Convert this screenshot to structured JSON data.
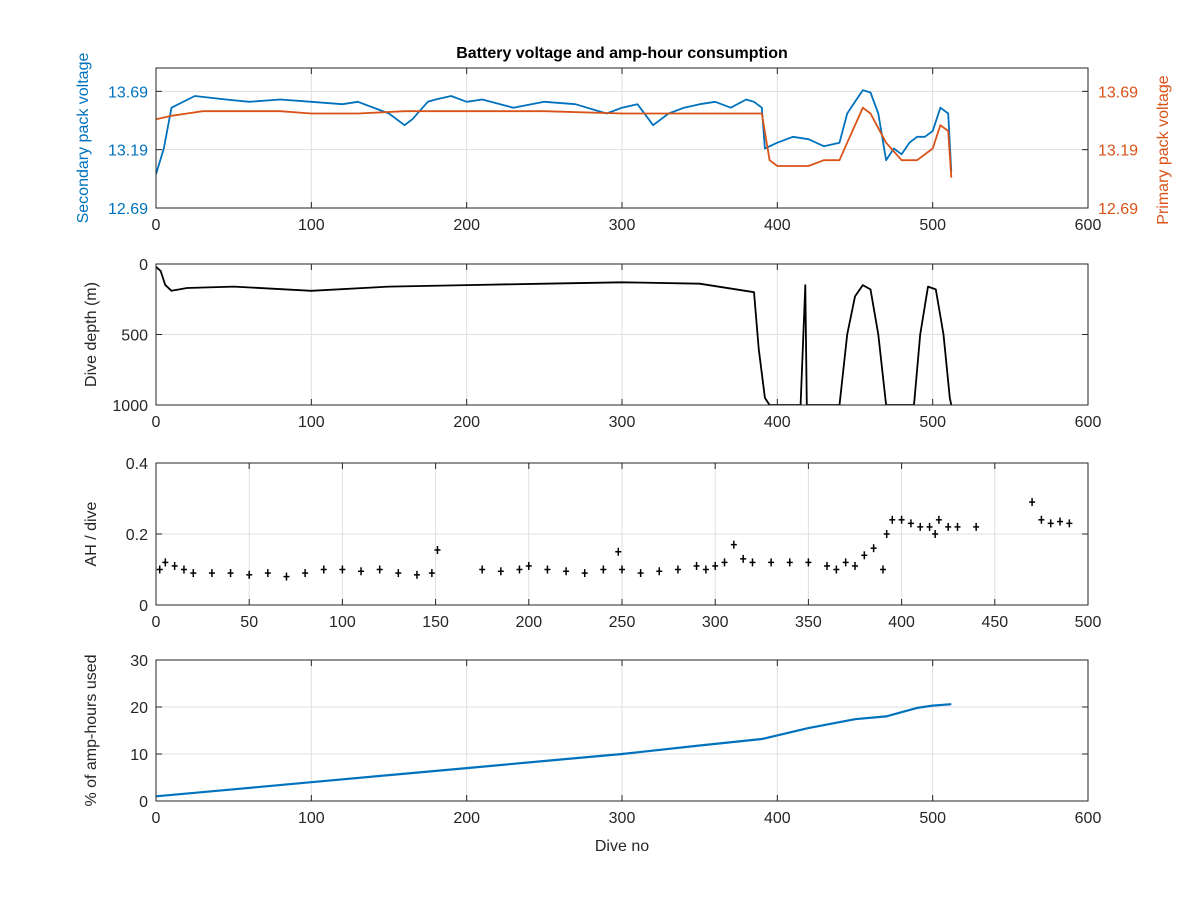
{
  "chart_data": [
    {
      "type": "line",
      "title": "Battery voltage and amp-hour consumption",
      "xlabel": "",
      "ylabel": "Secondary pack voltage",
      "ylabel_right": "Primary pack voltage",
      "xlim": [
        0,
        600
      ],
      "ylim": [
        12.69,
        13.89
      ],
      "ylim_right": [
        12.69,
        13.89
      ],
      "xticks": [
        0,
        100,
        200,
        300,
        400,
        500,
        600
      ],
      "yticks": [
        12.69,
        13.19,
        13.69
      ],
      "ytick_labels": [
        "12.69",
        "13.19",
        "13.69"
      ],
      "yticks_right": [
        12.69,
        13.19,
        13.69
      ],
      "ytick_labels_right": [
        "12.69",
        "13.19",
        "13.69"
      ],
      "grid": true,
      "series": [
        {
          "color": "#0072BD",
          "axis": "left",
          "x": [
            0,
            5,
            10,
            25,
            45,
            60,
            80,
            100,
            120,
            130,
            150,
            160,
            165,
            175,
            180,
            190,
            200,
            210,
            230,
            250,
            270,
            290,
            300,
            310,
            320,
            330,
            340,
            350,
            360,
            370,
            380,
            385,
            390,
            392,
            400,
            410,
            420,
            430,
            440,
            445,
            450,
            455,
            460,
            465,
            470,
            475,
            480,
            485,
            490,
            495,
            500,
            505,
            510,
            512
          ],
          "y": [
            12.98,
            13.2,
            13.55,
            13.65,
            13.62,
            13.6,
            13.62,
            13.6,
            13.58,
            13.6,
            13.5,
            13.4,
            13.45,
            13.6,
            13.62,
            13.65,
            13.6,
            13.62,
            13.55,
            13.6,
            13.58,
            13.5,
            13.55,
            13.58,
            13.4,
            13.5,
            13.55,
            13.58,
            13.6,
            13.55,
            13.62,
            13.6,
            13.55,
            13.2,
            13.25,
            13.3,
            13.28,
            13.22,
            13.25,
            13.5,
            13.6,
            13.7,
            13.68,
            13.5,
            13.1,
            13.2,
            13.15,
            13.25,
            13.3,
            13.3,
            13.35,
            13.55,
            13.5,
            13.0
          ]
        },
        {
          "color": "#D95319",
          "axis": "right",
          "x": [
            0,
            10,
            20,
            30,
            50,
            80,
            100,
            130,
            160,
            200,
            250,
            300,
            350,
            380,
            390,
            395,
            400,
            410,
            420,
            430,
            440,
            445,
            450,
            455,
            460,
            470,
            480,
            490,
            500,
            505,
            510,
            512
          ],
          "y": [
            13.45,
            13.48,
            13.5,
            13.52,
            13.52,
            13.52,
            13.5,
            13.5,
            13.52,
            13.52,
            13.52,
            13.5,
            13.5,
            13.5,
            13.5,
            13.1,
            13.05,
            13.05,
            13.05,
            13.1,
            13.1,
            13.25,
            13.4,
            13.55,
            13.5,
            13.25,
            13.1,
            13.1,
            13.2,
            13.4,
            13.35,
            12.95
          ]
        }
      ]
    },
    {
      "type": "line",
      "title": "",
      "xlabel": "",
      "ylabel": "Dive depth (m)",
      "xlim": [
        0,
        600
      ],
      "ylim": [
        1000,
        0
      ],
      "y_reversed": true,
      "xticks": [
        0,
        100,
        200,
        300,
        400,
        500,
        600
      ],
      "yticks": [
        0,
        500,
        1000
      ],
      "ytick_labels": [
        "0",
        "500",
        "1000"
      ],
      "grid": true,
      "series": [
        {
          "color": "#000000",
          "x": [
            0,
            3,
            6,
            10,
            20,
            50,
            100,
            150,
            200,
            250,
            300,
            350,
            385,
            388,
            392,
            395,
            400,
            410,
            415,
            418,
            419,
            420,
            422,
            425,
            430,
            440,
            445,
            450,
            455,
            460,
            465,
            470,
            480,
            488,
            492,
            497,
            502,
            507,
            511,
            512
          ],
          "y": [
            20,
            50,
            150,
            190,
            170,
            160,
            190,
            160,
            150,
            140,
            130,
            140,
            200,
            600,
            950,
            1000,
            1000,
            1000,
            1000,
            150,
            1000,
            1000,
            1000,
            1000,
            1000,
            1000,
            500,
            230,
            150,
            180,
            500,
            1000,
            1000,
            1000,
            500,
            160,
            180,
            500,
            950,
            1000
          ]
        }
      ]
    },
    {
      "type": "scatter",
      "title": "",
      "xlabel": "",
      "ylabel": "AH / dive",
      "xlim": [
        0,
        500
      ],
      "ylim": [
        0,
        0.4
      ],
      "xticks": [
        0,
        50,
        100,
        150,
        200,
        250,
        300,
        350,
        400,
        450,
        500
      ],
      "yticks": [
        0,
        0.2,
        0.4
      ],
      "ytick_labels": [
        "0",
        "0.2",
        "0.4"
      ],
      "grid": true,
      "series": [
        {
          "color": "#000000",
          "x": [
            2,
            5,
            10,
            15,
            20,
            30,
            40,
            50,
            60,
            70,
            80,
            90,
            100,
            110,
            120,
            130,
            140,
            148,
            151,
            175,
            185,
            195,
            200,
            210,
            220,
            230,
            240,
            248,
            250,
            260,
            270,
            280,
            290,
            295,
            300,
            305,
            310,
            315,
            320,
            330,
            340,
            350,
            360,
            365,
            370,
            375,
            380,
            385,
            390,
            392,
            395,
            400,
            405,
            410,
            415,
            418,
            420,
            425,
            430,
            440,
            470,
            475,
            480,
            485,
            490
          ],
          "y": [
            0.1,
            0.12,
            0.11,
            0.1,
            0.09,
            0.09,
            0.09,
            0.085,
            0.09,
            0.08,
            0.09,
            0.1,
            0.1,
            0.095,
            0.1,
            0.09,
            0.085,
            0.09,
            0.155,
            0.1,
            0.095,
            0.1,
            0.11,
            0.1,
            0.095,
            0.09,
            0.1,
            0.15,
            0.1,
            0.09,
            0.095,
            0.1,
            0.11,
            0.1,
            0.11,
            0.12,
            0.17,
            0.13,
            0.12,
            0.12,
            0.12,
            0.12,
            0.11,
            0.1,
            0.12,
            0.11,
            0.14,
            0.16,
            0.1,
            0.2,
            0.24,
            0.24,
            0.23,
            0.22,
            0.22,
            0.2,
            0.24,
            0.22,
            0.22,
            0.22,
            0.29,
            0.24,
            0.23,
            0.235,
            0.23
          ]
        }
      ]
    },
    {
      "type": "line",
      "title": "",
      "xlabel": "Dive no",
      "ylabel": "% of amp-hours used",
      "xlim": [
        0,
        600
      ],
      "ylim": [
        0,
        30
      ],
      "xticks": [
        0,
        100,
        200,
        300,
        400,
        500,
        600
      ],
      "yticks": [
        0,
        10,
        20,
        30
      ],
      "ytick_labels": [
        "0",
        "10",
        "20",
        "30"
      ],
      "grid": true,
      "series": [
        {
          "color": "#0072BD",
          "x": [
            0,
            50,
            100,
            150,
            200,
            250,
            300,
            350,
            390,
            420,
            450,
            470,
            490,
            500,
            512
          ],
          "y": [
            1,
            2.5,
            4,
            5.5,
            7,
            8.5,
            10,
            11.8,
            13.2,
            15.5,
            17.4,
            18,
            19.8,
            20.3,
            20.6
          ]
        }
      ]
    }
  ]
}
